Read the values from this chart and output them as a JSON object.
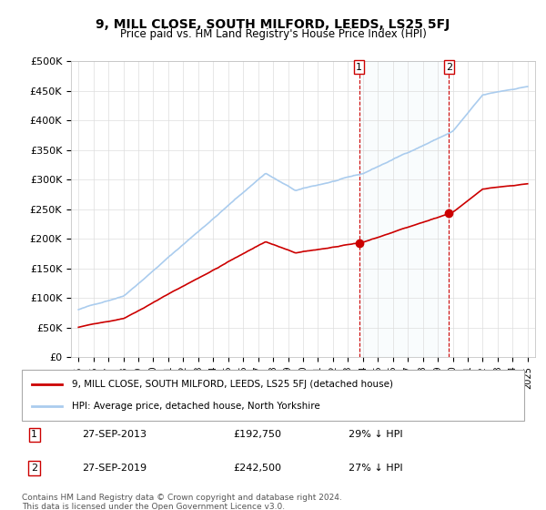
{
  "title": "9, MILL CLOSE, SOUTH MILFORD, LEEDS, LS25 5FJ",
  "subtitle": "Price paid vs. HM Land Registry's House Price Index (HPI)",
  "ylabel_ticks": [
    "£0",
    "£50K",
    "£100K",
    "£150K",
    "£200K",
    "£250K",
    "£300K",
    "£350K",
    "£400K",
    "£450K",
    "£500K"
  ],
  "ytick_values": [
    0,
    50000,
    100000,
    150000,
    200000,
    250000,
    300000,
    350000,
    400000,
    450000,
    500000
  ],
  "ylim": [
    0,
    500000
  ],
  "hpi_color": "#aaccee",
  "price_color": "#cc0000",
  "vline_color": "#cc0000",
  "marker_color": "#cc0000",
  "legend_label_price": "9, MILL CLOSE, SOUTH MILFORD, LEEDS, LS25 5FJ (detached house)",
  "legend_label_hpi": "HPI: Average price, detached house, North Yorkshire",
  "sale1_date": "27-SEP-2013",
  "sale1_price": 192750,
  "sale1_label": "29% ↓ HPI",
  "sale1_year": 2013.75,
  "sale2_date": "27-SEP-2019",
  "sale2_price": 242500,
  "sale2_label": "27% ↓ HPI",
  "sale2_year": 2019.75,
  "footnote": "Contains HM Land Registry data © Crown copyright and database right 2024.\nThis data is licensed under the Open Government Licence v3.0.",
  "background_color": "#ffffff",
  "grid_color": "#dddddd"
}
